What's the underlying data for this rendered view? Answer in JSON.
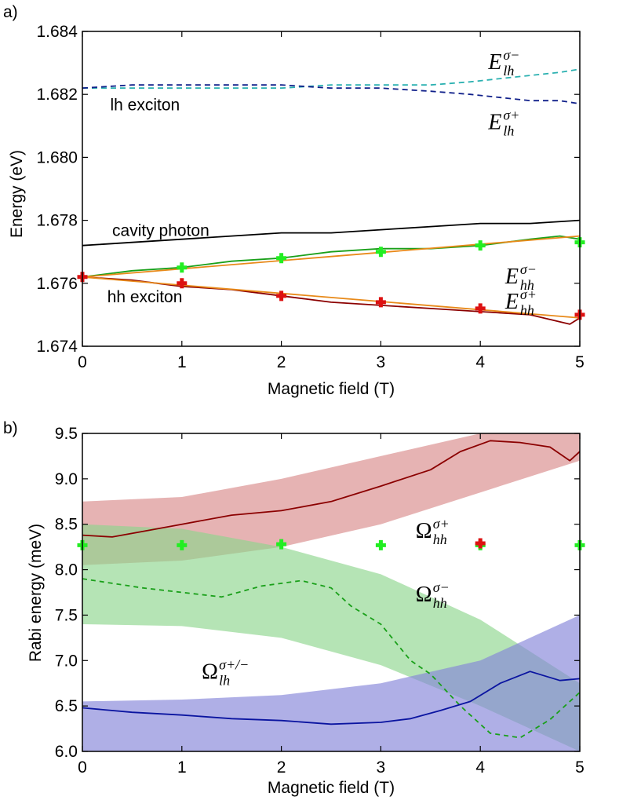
{
  "chart_data": [
    {
      "panel_label": "a)",
      "type": "line",
      "xlabel": "Magnetic field (T)",
      "ylabel": "Energy (eV)",
      "xlim": [
        0,
        5
      ],
      "ylim": [
        1.674,
        1.684
      ],
      "xticks": [
        0,
        1,
        2,
        3,
        4,
        5
      ],
      "yticks": [
        1.674,
        1.676,
        1.678,
        1.68,
        1.682,
        1.684
      ],
      "ytick_labels": [
        "1.674",
        "1.676",
        "1.678",
        "1.680",
        "1.682",
        "1.684"
      ],
      "annotations": [
        {
          "text": "lh exciton",
          "x": 0.28,
          "y": 1.6815
        },
        {
          "text": "cavity photon",
          "x": 0.3,
          "y": 1.6775
        },
        {
          "text": "hh exciton",
          "x": 0.25,
          "y": 1.6754
        }
      ],
      "symbol_labels": [
        {
          "base": "E",
          "sup": "σ−",
          "sub": "lh",
          "x": 4.08,
          "y": 1.6828
        },
        {
          "base": "E",
          "sup": "σ+",
          "sub": "lh",
          "x": 4.08,
          "y": 1.6809
        },
        {
          "base": "E",
          "sup": "σ−",
          "sub": "hh",
          "x": 4.25,
          "y": 1.676
        },
        {
          "base": "E",
          "sup": "σ+",
          "sub": "hh",
          "x": 4.25,
          "y": 1.6752
        }
      ],
      "series": [
        {
          "name": "E_lh σ−",
          "style": "dashed",
          "color": "#2ab0b0",
          "x": [
            0,
            0.5,
            1,
            1.5,
            2,
            2.5,
            3,
            3.5,
            3.9,
            4.2,
            4.5,
            4.8,
            5
          ],
          "y": [
            1.6822,
            1.6822,
            1.6822,
            1.6822,
            1.6822,
            1.6823,
            1.6823,
            1.6823,
            1.6824,
            1.6825,
            1.6826,
            1.6827,
            1.6828
          ]
        },
        {
          "name": "E_lh σ+",
          "style": "dashed",
          "color": "#10208a",
          "x": [
            0,
            0.5,
            1,
            1.5,
            2,
            2.5,
            3,
            3.5,
            3.9,
            4.2,
            4.5,
            4.8,
            5
          ],
          "y": [
            1.6822,
            1.6823,
            1.6823,
            1.6823,
            1.6823,
            1.6822,
            1.6822,
            1.6821,
            1.682,
            1.6819,
            1.6818,
            1.6818,
            1.6817
          ]
        },
        {
          "name": "cavity photon",
          "style": "solid",
          "color": "#000000",
          "x": [
            0,
            0.5,
            1,
            1.5,
            2,
            2.5,
            3,
            3.5,
            4,
            4.5,
            5
          ],
          "y": [
            1.6772,
            1.6773,
            1.6774,
            1.6775,
            1.6776,
            1.6776,
            1.6777,
            1.6778,
            1.6779,
            1.6779,
            1.678
          ]
        },
        {
          "name": "E_hh σ− data",
          "style": "solid",
          "color": "#1aa01a",
          "x": [
            0,
            0.5,
            1,
            1.5,
            2,
            2.5,
            3,
            3.5,
            4,
            4.5,
            4.8,
            5
          ],
          "y": [
            1.6762,
            1.6764,
            1.6765,
            1.6767,
            1.6768,
            1.677,
            1.6771,
            1.6771,
            1.6772,
            1.6774,
            1.6775,
            1.6774
          ]
        },
        {
          "name": "E_hh σ+ data",
          "style": "solid",
          "color": "#8b0000",
          "x": [
            0,
            0.5,
            1,
            1.5,
            2,
            2.5,
            3,
            3.5,
            4,
            4.5,
            4.9,
            5
          ],
          "y": [
            1.6762,
            1.6761,
            1.6759,
            1.6758,
            1.6756,
            1.6754,
            1.6753,
            1.6752,
            1.6751,
            1.675,
            1.6747,
            1.6749
          ]
        },
        {
          "name": "E_hh σ− fit",
          "style": "solid",
          "color": "#e88a1a",
          "x": [
            0,
            5
          ],
          "y": [
            1.6762,
            1.6775
          ]
        },
        {
          "name": "E_hh σ+ fit",
          "style": "solid",
          "color": "#e88a1a",
          "x": [
            0,
            5
          ],
          "y": [
            1.6762,
            1.6749
          ]
        },
        {
          "name": "σ− markers",
          "style": "markers",
          "color": "#22ee22",
          "x": [
            1,
            2,
            3,
            4,
            5
          ],
          "y": [
            1.6765,
            1.6768,
            1.677,
            1.6772,
            1.6773
          ]
        },
        {
          "name": "σ+ markers",
          "style": "markers",
          "color": "#dd1111",
          "x": [
            0,
            1,
            2,
            3,
            4,
            5
          ],
          "y": [
            1.6762,
            1.676,
            1.6756,
            1.6754,
            1.6752,
            1.675
          ]
        }
      ]
    },
    {
      "panel_label": "b)",
      "type": "line",
      "xlabel": "Magnetic field (T)",
      "ylabel": "Rabi energy (meV)",
      "xlim": [
        0,
        5
      ],
      "ylim": [
        6.0,
        9.5
      ],
      "xticks": [
        0,
        1,
        2,
        3,
        4,
        5
      ],
      "yticks": [
        6.0,
        6.5,
        7.0,
        7.5,
        8.0,
        8.5,
        9.0,
        9.5
      ],
      "ytick_labels": [
        "6.0",
        "6.5",
        "7.0",
        "7.5",
        "8.0",
        "8.5",
        "9.0",
        "9.5"
      ],
      "symbol_labels": [
        {
          "base": "Ω",
          "sup": "σ+",
          "sub": "hh",
          "x": 3.35,
          "y": 8.35
        },
        {
          "base": "Ω",
          "sup": "σ−",
          "sub": "hh",
          "x": 3.35,
          "y": 7.65
        },
        {
          "base": "Ω",
          "sup": "σ+/−",
          "sub": "lh",
          "x": 1.2,
          "y": 6.8
        }
      ],
      "bands": [
        {
          "name": "hh σ+ band",
          "color": "#d88a8a",
          "x": [
            0,
            1,
            2,
            3,
            4,
            5
          ],
          "upper": [
            8.75,
            8.8,
            9.0,
            9.25,
            9.5,
            9.5
          ],
          "lower": [
            8.05,
            8.1,
            8.25,
            8.5,
            8.85,
            9.2
          ]
        },
        {
          "name": "hh σ− band",
          "color": "#8ed68e",
          "x": [
            0,
            1,
            2,
            3,
            4,
            5
          ],
          "upper": [
            8.5,
            8.45,
            8.25,
            7.95,
            7.45,
            6.75
          ],
          "lower": [
            7.4,
            7.38,
            7.25,
            6.95,
            6.5,
            6.0
          ]
        },
        {
          "name": "lh band",
          "color": "#8484d8",
          "x": [
            0,
            1,
            2,
            3,
            4,
            5
          ],
          "upper": [
            6.55,
            6.57,
            6.62,
            6.75,
            7.0,
            7.5
          ],
          "lower": [
            6.0,
            6.0,
            6.0,
            6.0,
            6.0,
            6.0
          ]
        }
      ],
      "series": [
        {
          "name": "Ω_hh σ+",
          "style": "solid",
          "color": "#8b0000",
          "x": [
            0,
            0.3,
            0.6,
            1,
            1.5,
            2,
            2.5,
            3,
            3.5,
            3.8,
            4.1,
            4.4,
            4.7,
            4.9,
            5
          ],
          "y": [
            8.38,
            8.36,
            8.42,
            8.5,
            8.6,
            8.65,
            8.75,
            8.92,
            9.1,
            9.3,
            9.42,
            9.4,
            9.35,
            9.2,
            9.3
          ]
        },
        {
          "name": "Ω_hh σ−",
          "style": "dashed",
          "color": "#1aa01a",
          "x": [
            0,
            0.3,
            0.6,
            1,
            1.4,
            1.8,
            2.2,
            2.5,
            2.7,
            3.0,
            3.3,
            3.5,
            3.8,
            4.1,
            4.4,
            4.7,
            5
          ],
          "y": [
            7.9,
            7.85,
            7.8,
            7.75,
            7.7,
            7.82,
            7.88,
            7.8,
            7.6,
            7.4,
            7.0,
            6.85,
            6.5,
            6.2,
            6.15,
            6.35,
            6.65
          ]
        },
        {
          "name": "Ω_lh σ+/−",
          "style": "solid",
          "color": "#0a14a0",
          "x": [
            0,
            0.5,
            1,
            1.5,
            2,
            2.5,
            3,
            3.3,
            3.6,
            3.9,
            4.2,
            4.5,
            4.8,
            5
          ],
          "y": [
            6.48,
            6.43,
            6.4,
            6.36,
            6.34,
            6.3,
            6.32,
            6.36,
            6.45,
            6.55,
            6.75,
            6.88,
            6.78,
            6.8
          ]
        },
        {
          "name": "σ− markers",
          "style": "markers",
          "color": "#22ee22",
          "x": [
            0,
            1,
            2,
            3,
            4,
            5
          ],
          "y": [
            8.27,
            8.27,
            8.28,
            8.27,
            8.27,
            8.27
          ]
        },
        {
          "name": "σ+ markers",
          "style": "markers",
          "color": "#dd1111",
          "x": [
            4
          ],
          "y": [
            8.29
          ]
        }
      ]
    }
  ]
}
